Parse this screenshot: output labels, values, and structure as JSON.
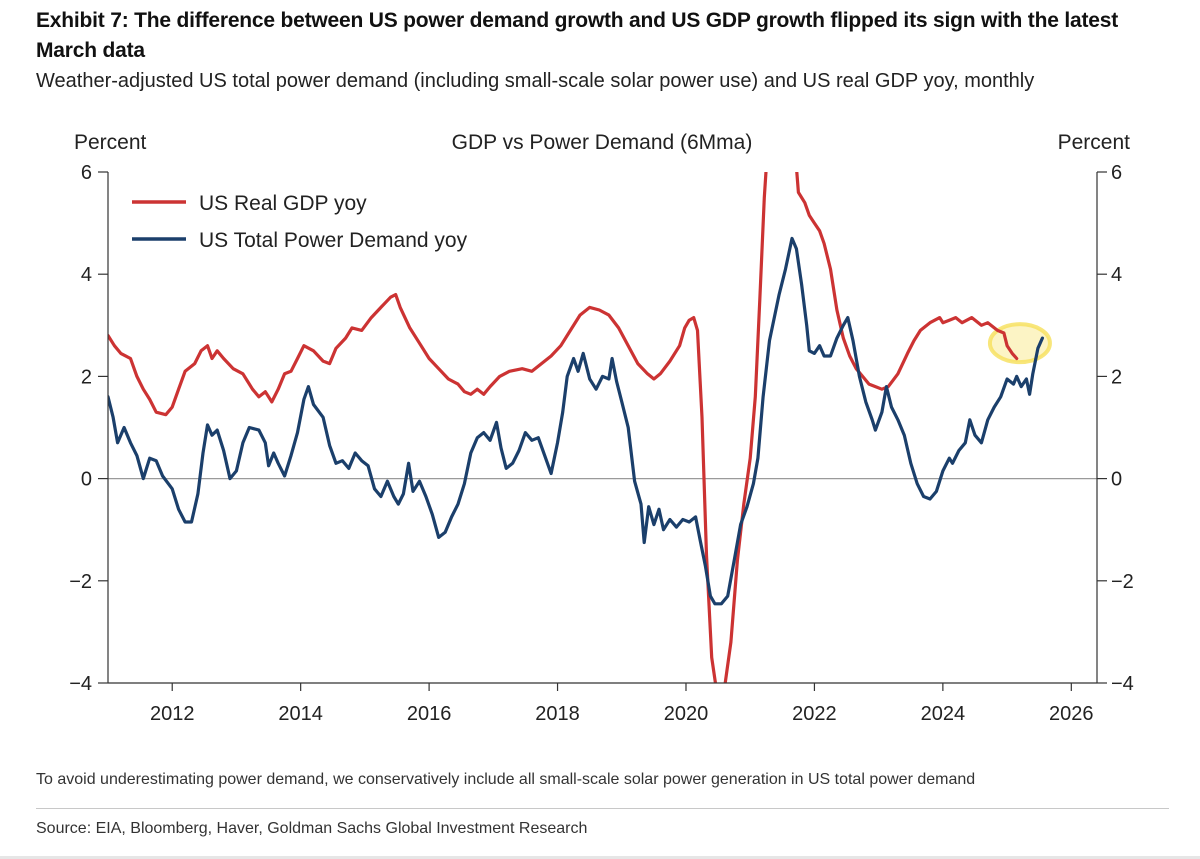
{
  "header": {
    "title": "Exhibit 7: The difference between US power demand growth and US GDP growth flipped its sign with the latest March data",
    "subtitle": "Weather-adjusted US total power demand (including small-scale solar power use) and US real GDP yoy, monthly"
  },
  "chart_data": {
    "type": "line",
    "title": "GDP vs Power Demand (6Mma)",
    "ylabel_left": "Percent",
    "ylabel_right": "Percent",
    "xlabel": "",
    "xlim": [
      2011.0,
      2026.4
    ],
    "ylim": [
      -4,
      6
    ],
    "x_ticks": [
      2012,
      2014,
      2016,
      2018,
      2020,
      2022,
      2024,
      2026
    ],
    "x_tick_labels": [
      "2012",
      "2014",
      "2016",
      "2018",
      "2020",
      "2022",
      "2024",
      "2026"
    ],
    "y_ticks": [
      -4,
      -2,
      0,
      2,
      4,
      6
    ],
    "y_tick_labels": [
      "−4",
      "−2",
      "0",
      "2",
      "4",
      "6"
    ],
    "legend_position": "top-left",
    "highlight": {
      "x": 2025.2,
      "y": 2.65,
      "color": "#f6e05a",
      "note": "latest March data"
    },
    "series": [
      {
        "name": "US Real GDP yoy",
        "color": "#cc3333",
        "points": [
          [
            2011.0,
            2.8
          ],
          [
            2011.1,
            2.6
          ],
          [
            2011.2,
            2.45
          ],
          [
            2011.35,
            2.35
          ],
          [
            2011.45,
            2.0
          ],
          [
            2011.55,
            1.75
          ],
          [
            2011.65,
            1.55
          ],
          [
            2011.75,
            1.3
          ],
          [
            2011.9,
            1.25
          ],
          [
            2012.0,
            1.4
          ],
          [
            2012.1,
            1.75
          ],
          [
            2012.2,
            2.1
          ],
          [
            2012.35,
            2.25
          ],
          [
            2012.45,
            2.5
          ],
          [
            2012.55,
            2.6
          ],
          [
            2012.62,
            2.35
          ],
          [
            2012.7,
            2.5
          ],
          [
            2012.8,
            2.35
          ],
          [
            2012.95,
            2.15
          ],
          [
            2013.1,
            2.05
          ],
          [
            2013.25,
            1.75
          ],
          [
            2013.35,
            1.6
          ],
          [
            2013.45,
            1.7
          ],
          [
            2013.55,
            1.5
          ],
          [
            2013.65,
            1.75
          ],
          [
            2013.75,
            2.05
          ],
          [
            2013.85,
            2.1
          ],
          [
            2013.95,
            2.35
          ],
          [
            2014.05,
            2.6
          ],
          [
            2014.2,
            2.5
          ],
          [
            2014.35,
            2.3
          ],
          [
            2014.45,
            2.25
          ],
          [
            2014.55,
            2.55
          ],
          [
            2014.7,
            2.75
          ],
          [
            2014.8,
            2.95
          ],
          [
            2014.95,
            2.9
          ],
          [
            2015.1,
            3.15
          ],
          [
            2015.25,
            3.35
          ],
          [
            2015.4,
            3.55
          ],
          [
            2015.48,
            3.6
          ],
          [
            2015.55,
            3.35
          ],
          [
            2015.7,
            2.95
          ],
          [
            2015.85,
            2.65
          ],
          [
            2016.0,
            2.35
          ],
          [
            2016.15,
            2.15
          ],
          [
            2016.3,
            1.95
          ],
          [
            2016.45,
            1.85
          ],
          [
            2016.55,
            1.7
          ],
          [
            2016.65,
            1.65
          ],
          [
            2016.75,
            1.75
          ],
          [
            2016.85,
            1.65
          ],
          [
            2016.95,
            1.8
          ],
          [
            2017.1,
            2.0
          ],
          [
            2017.25,
            2.1
          ],
          [
            2017.45,
            2.15
          ],
          [
            2017.6,
            2.1
          ],
          [
            2017.75,
            2.25
          ],
          [
            2017.9,
            2.4
          ],
          [
            2018.05,
            2.6
          ],
          [
            2018.2,
            2.9
          ],
          [
            2018.35,
            3.2
          ],
          [
            2018.5,
            3.35
          ],
          [
            2018.65,
            3.3
          ],
          [
            2018.8,
            3.2
          ],
          [
            2018.95,
            2.95
          ],
          [
            2019.1,
            2.6
          ],
          [
            2019.25,
            2.25
          ],
          [
            2019.4,
            2.05
          ],
          [
            2019.5,
            1.95
          ],
          [
            2019.6,
            2.05
          ],
          [
            2019.75,
            2.3
          ],
          [
            2019.9,
            2.6
          ],
          [
            2019.98,
            2.95
          ],
          [
            2020.05,
            3.1
          ],
          [
            2020.12,
            3.15
          ],
          [
            2020.18,
            2.9
          ],
          [
            2020.25,
            1.2
          ],
          [
            2020.32,
            -1.5
          ],
          [
            2020.4,
            -3.5
          ],
          [
            2020.47,
            -4.1
          ],
          [
            2020.6,
            -4.1
          ],
          [
            2020.7,
            -3.2
          ],
          [
            2020.8,
            -1.6
          ],
          [
            2020.9,
            -0.5
          ],
          [
            2021.0,
            0.4
          ],
          [
            2021.08,
            1.6
          ],
          [
            2021.15,
            3.5
          ],
          [
            2021.22,
            5.5
          ],
          [
            2021.25,
            6.1
          ],
          [
            2021.72,
            6.1
          ],
          [
            2021.75,
            5.6
          ],
          [
            2021.85,
            5.4
          ],
          [
            2021.92,
            5.15
          ],
          [
            2022.0,
            5.0
          ],
          [
            2022.08,
            4.85
          ],
          [
            2022.15,
            4.6
          ],
          [
            2022.25,
            4.1
          ],
          [
            2022.35,
            3.3
          ],
          [
            2022.45,
            2.75
          ],
          [
            2022.55,
            2.4
          ],
          [
            2022.65,
            2.15
          ],
          [
            2022.75,
            2.0
          ],
          [
            2022.85,
            1.85
          ],
          [
            2022.95,
            1.8
          ],
          [
            2023.05,
            1.75
          ],
          [
            2023.15,
            1.8
          ],
          [
            2023.3,
            2.05
          ],
          [
            2023.45,
            2.45
          ],
          [
            2023.55,
            2.7
          ],
          [
            2023.65,
            2.9
          ],
          [
            2023.8,
            3.05
          ],
          [
            2023.95,
            3.15
          ],
          [
            2024.0,
            3.05
          ],
          [
            2024.1,
            3.1
          ],
          [
            2024.2,
            3.15
          ],
          [
            2024.3,
            3.05
          ],
          [
            2024.45,
            3.15
          ],
          [
            2024.6,
            3.0
          ],
          [
            2024.7,
            3.05
          ],
          [
            2024.85,
            2.9
          ],
          [
            2024.95,
            2.85
          ],
          [
            2025.0,
            2.6
          ],
          [
            2025.08,
            2.45
          ],
          [
            2025.15,
            2.35
          ]
        ]
      },
      {
        "name": "US Total Power Demand yoy",
        "color": "#1b3f6b",
        "points": [
          [
            2011.0,
            1.6
          ],
          [
            2011.08,
            1.2
          ],
          [
            2011.15,
            0.7
          ],
          [
            2011.25,
            1.0
          ],
          [
            2011.35,
            0.7
          ],
          [
            2011.45,
            0.45
          ],
          [
            2011.55,
            0.0
          ],
          [
            2011.65,
            0.4
          ],
          [
            2011.75,
            0.35
          ],
          [
            2011.85,
            0.05
          ],
          [
            2012.0,
            -0.2
          ],
          [
            2012.1,
            -0.6
          ],
          [
            2012.2,
            -0.85
          ],
          [
            2012.3,
            -0.85
          ],
          [
            2012.4,
            -0.3
          ],
          [
            2012.48,
            0.5
          ],
          [
            2012.55,
            1.05
          ],
          [
            2012.62,
            0.85
          ],
          [
            2012.7,
            0.95
          ],
          [
            2012.8,
            0.55
          ],
          [
            2012.9,
            0.0
          ],
          [
            2013.0,
            0.15
          ],
          [
            2013.1,
            0.7
          ],
          [
            2013.2,
            1.0
          ],
          [
            2013.35,
            0.95
          ],
          [
            2013.45,
            0.7
          ],
          [
            2013.5,
            0.25
          ],
          [
            2013.58,
            0.5
          ],
          [
            2013.65,
            0.3
          ],
          [
            2013.75,
            0.05
          ],
          [
            2013.85,
            0.45
          ],
          [
            2013.95,
            0.9
          ],
          [
            2014.05,
            1.55
          ],
          [
            2014.12,
            1.8
          ],
          [
            2014.2,
            1.45
          ],
          [
            2014.35,
            1.2
          ],
          [
            2014.45,
            0.65
          ],
          [
            2014.55,
            0.3
          ],
          [
            2014.65,
            0.35
          ],
          [
            2014.75,
            0.2
          ],
          [
            2014.85,
            0.5
          ],
          [
            2014.95,
            0.35
          ],
          [
            2015.05,
            0.25
          ],
          [
            2015.15,
            -0.2
          ],
          [
            2015.25,
            -0.35
          ],
          [
            2015.35,
            -0.05
          ],
          [
            2015.45,
            -0.35
          ],
          [
            2015.52,
            -0.5
          ],
          [
            2015.6,
            -0.3
          ],
          [
            2015.68,
            0.3
          ],
          [
            2015.75,
            -0.25
          ],
          [
            2015.85,
            -0.05
          ],
          [
            2015.95,
            -0.35
          ],
          [
            2016.05,
            -0.7
          ],
          [
            2016.15,
            -1.15
          ],
          [
            2016.25,
            -1.05
          ],
          [
            2016.35,
            -0.75
          ],
          [
            2016.45,
            -0.5
          ],
          [
            2016.55,
            -0.1
          ],
          [
            2016.65,
            0.5
          ],
          [
            2016.75,
            0.8
          ],
          [
            2016.85,
            0.9
          ],
          [
            2016.95,
            0.75
          ],
          [
            2017.05,
            1.1
          ],
          [
            2017.12,
            0.6
          ],
          [
            2017.2,
            0.2
          ],
          [
            2017.3,
            0.3
          ],
          [
            2017.4,
            0.55
          ],
          [
            2017.5,
            0.9
          ],
          [
            2017.6,
            0.75
          ],
          [
            2017.7,
            0.8
          ],
          [
            2017.8,
            0.45
          ],
          [
            2017.9,
            0.1
          ],
          [
            2018.0,
            0.7
          ],
          [
            2018.08,
            1.3
          ],
          [
            2018.15,
            2.0
          ],
          [
            2018.25,
            2.35
          ],
          [
            2018.32,
            2.1
          ],
          [
            2018.4,
            2.45
          ],
          [
            2018.5,
            1.95
          ],
          [
            2018.6,
            1.75
          ],
          [
            2018.7,
            2.0
          ],
          [
            2018.8,
            1.95
          ],
          [
            2018.85,
            2.35
          ],
          [
            2018.92,
            1.9
          ],
          [
            2019.0,
            1.5
          ],
          [
            2019.1,
            1.0
          ],
          [
            2019.2,
            -0.05
          ],
          [
            2019.3,
            -0.5
          ],
          [
            2019.35,
            -1.25
          ],
          [
            2019.42,
            -0.55
          ],
          [
            2019.5,
            -0.9
          ],
          [
            2019.58,
            -0.6
          ],
          [
            2019.65,
            -1.0
          ],
          [
            2019.75,
            -0.8
          ],
          [
            2019.85,
            -0.95
          ],
          [
            2019.95,
            -0.8
          ],
          [
            2020.05,
            -0.85
          ],
          [
            2020.15,
            -0.75
          ],
          [
            2020.22,
            -1.2
          ],
          [
            2020.3,
            -1.7
          ],
          [
            2020.38,
            -2.3
          ],
          [
            2020.45,
            -2.45
          ],
          [
            2020.55,
            -2.45
          ],
          [
            2020.65,
            -2.3
          ],
          [
            2020.75,
            -1.6
          ],
          [
            2020.85,
            -0.9
          ],
          [
            2020.95,
            -0.55
          ],
          [
            2021.05,
            -0.1
          ],
          [
            2021.12,
            0.4
          ],
          [
            2021.2,
            1.6
          ],
          [
            2021.3,
            2.7
          ],
          [
            2021.45,
            3.6
          ],
          [
            2021.55,
            4.1
          ],
          [
            2021.65,
            4.7
          ],
          [
            2021.72,
            4.5
          ],
          [
            2021.8,
            3.8
          ],
          [
            2021.88,
            3.0
          ],
          [
            2021.92,
            2.5
          ],
          [
            2022.0,
            2.45
          ],
          [
            2022.08,
            2.6
          ],
          [
            2022.15,
            2.4
          ],
          [
            2022.25,
            2.4
          ],
          [
            2022.35,
            2.75
          ],
          [
            2022.45,
            3.0
          ],
          [
            2022.52,
            3.15
          ],
          [
            2022.6,
            2.7
          ],
          [
            2022.7,
            2.0
          ],
          [
            2022.8,
            1.5
          ],
          [
            2022.9,
            1.15
          ],
          [
            2022.95,
            0.95
          ],
          [
            2023.05,
            1.3
          ],
          [
            2023.12,
            1.8
          ],
          [
            2023.2,
            1.4
          ],
          [
            2023.3,
            1.15
          ],
          [
            2023.4,
            0.85
          ],
          [
            2023.5,
            0.3
          ],
          [
            2023.6,
            -0.1
          ],
          [
            2023.7,
            -0.35
          ],
          [
            2023.8,
            -0.4
          ],
          [
            2023.9,
            -0.25
          ],
          [
            2024.0,
            0.15
          ],
          [
            2024.1,
            0.4
          ],
          [
            2024.15,
            0.3
          ],
          [
            2024.25,
            0.55
          ],
          [
            2024.35,
            0.7
          ],
          [
            2024.42,
            1.15
          ],
          [
            2024.5,
            0.85
          ],
          [
            2024.6,
            0.7
          ],
          [
            2024.7,
            1.15
          ],
          [
            2024.8,
            1.4
          ],
          [
            2024.9,
            1.6
          ],
          [
            2025.0,
            1.95
          ],
          [
            2025.1,
            1.85
          ],
          [
            2025.15,
            2.0
          ],
          [
            2025.22,
            1.8
          ],
          [
            2025.3,
            1.95
          ],
          [
            2025.35,
            1.65
          ],
          [
            2025.4,
            2.05
          ],
          [
            2025.48,
            2.55
          ],
          [
            2025.55,
            2.75
          ]
        ]
      }
    ]
  }
}
